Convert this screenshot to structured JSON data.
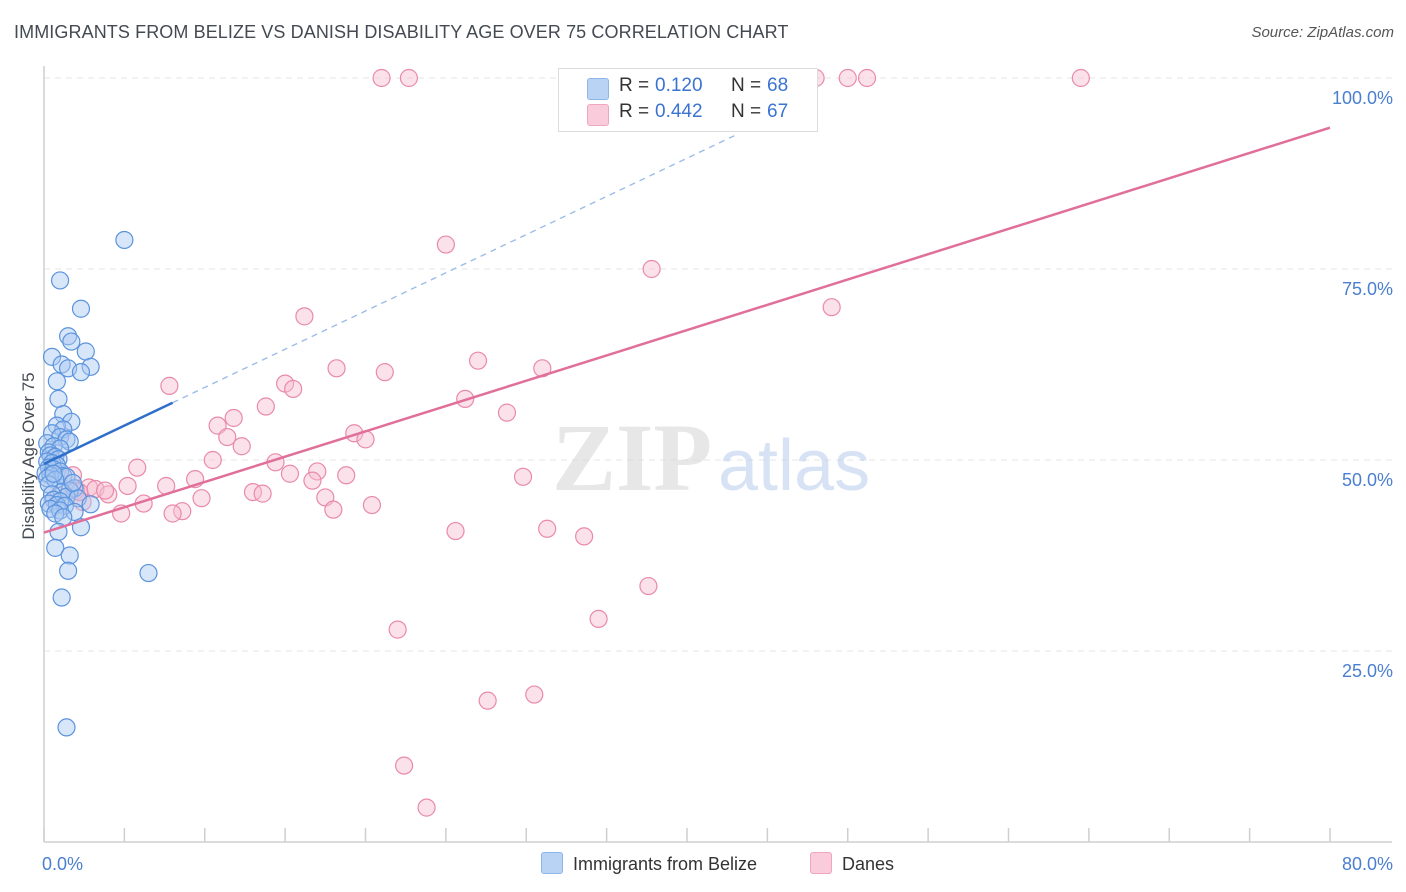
{
  "title": "IMMIGRANTS FROM BELIZE VS DANISH DISABILITY AGE OVER 75 CORRELATION CHART",
  "source": "Source: ZipAtlas.com",
  "watermark": {
    "zip": "ZIP",
    "atlas": "atlas"
  },
  "legend": {
    "rows": [
      {
        "r_label": "R = ",
        "r_value": "0.120",
        "n_label": "N = ",
        "n_value": "68"
      },
      {
        "r_label": "R = ",
        "r_value": "0.442",
        "n_label": "N = ",
        "n_value": "67"
      }
    ]
  },
  "bottom_legend": {
    "series1": "Immigrants from Belize",
    "series2": "Danes"
  },
  "colors": {
    "blue_fill": "#a9c8f2",
    "blue_stroke": "#5b93dd",
    "blue_line": "#2f6fc9",
    "pink_fill": "#f6bdd0",
    "pink_stroke": "#e98aaa",
    "pink_line": "#e0709a",
    "grid": "#e4e4e4",
    "tick": "#4a7fcf"
  },
  "chart_data": {
    "type": "scatter",
    "title": "IMMIGRANTS FROM BELIZE VS DANISH DISABILITY AGE OVER 75 CORRELATION CHART",
    "xlabel": "",
    "ylabel": "Disability Age Over 75",
    "xlim": [
      0,
      80
    ],
    "ylim": [
      0,
      100
    ],
    "x_tick_labels": [
      "0.0%",
      "80.0%"
    ],
    "y_ticks": [
      25,
      50,
      75,
      100
    ],
    "y_tick_labels": [
      "25.0%",
      "50.0%",
      "75.0%",
      "100.0%"
    ],
    "grid": true,
    "series": [
      {
        "name": "Immigrants from Belize",
        "r": 0.12,
        "n": 68,
        "trend": {
          "x0": 0.0,
          "y0": 49.5,
          "x1": 8.0,
          "y1": 57.5
        },
        "trend_ext": {
          "x0": 8.0,
          "y0": 57.5,
          "x1": 43.0,
          "y1": 92.5
        },
        "points": [
          [
            5.0,
            78.8
          ],
          [
            1.0,
            73.5
          ],
          [
            2.3,
            69.8
          ],
          [
            1.5,
            66.2
          ],
          [
            1.7,
            65.5
          ],
          [
            2.6,
            64.2
          ],
          [
            0.5,
            63.5
          ],
          [
            1.1,
            62.5
          ],
          [
            1.5,
            62.0
          ],
          [
            2.9,
            62.2
          ],
          [
            2.3,
            61.5
          ],
          [
            0.8,
            60.3
          ],
          [
            0.9,
            58.0
          ],
          [
            1.2,
            56.0
          ],
          [
            1.7,
            55.0
          ],
          [
            0.8,
            54.5
          ],
          [
            1.2,
            54.0
          ],
          [
            0.5,
            53.5
          ],
          [
            1.0,
            53.0
          ],
          [
            1.4,
            52.7
          ],
          [
            1.6,
            52.4
          ],
          [
            0.2,
            52.2
          ],
          [
            0.6,
            51.8
          ],
          [
            1.0,
            51.5
          ],
          [
            0.3,
            51.0
          ],
          [
            0.4,
            50.6
          ],
          [
            0.7,
            50.4
          ],
          [
            0.9,
            50.1
          ],
          [
            0.2,
            49.8
          ],
          [
            0.5,
            49.6
          ],
          [
            0.8,
            49.3
          ],
          [
            0.3,
            49.0
          ],
          [
            0.6,
            48.8
          ],
          [
            1.0,
            48.5
          ],
          [
            0.1,
            48.3
          ],
          [
            0.4,
            48.0
          ],
          [
            1.2,
            47.9
          ],
          [
            1.4,
            47.8
          ],
          [
            0.2,
            47.6
          ],
          [
            0.7,
            47.4
          ],
          [
            0.3,
            46.8
          ],
          [
            1.9,
            46.3
          ],
          [
            1.6,
            46.0
          ],
          [
            1.1,
            45.8
          ],
          [
            0.5,
            45.5
          ],
          [
            1.4,
            45.2
          ],
          [
            2.1,
            45.0
          ],
          [
            0.6,
            44.8
          ],
          [
            1.0,
            44.6
          ],
          [
            0.3,
            44.3
          ],
          [
            0.8,
            44.1
          ],
          [
            1.3,
            44.0
          ],
          [
            2.9,
            44.2
          ],
          [
            0.4,
            43.6
          ],
          [
            1.0,
            43.4
          ],
          [
            1.9,
            43.2
          ],
          [
            0.7,
            43.0
          ],
          [
            1.2,
            42.5
          ],
          [
            2.3,
            41.2
          ],
          [
            0.9,
            40.6
          ],
          [
            0.7,
            38.5
          ],
          [
            1.6,
            37.5
          ],
          [
            1.5,
            35.5
          ],
          [
            6.5,
            35.2
          ],
          [
            1.1,
            32.0
          ],
          [
            1.4,
            15.0
          ],
          [
            0.6,
            48.2
          ],
          [
            1.8,
            47.0
          ]
        ]
      },
      {
        "name": "Danes",
        "r": 0.442,
        "n": 67,
        "trend": {
          "x0": 0.0,
          "y0": 40.5,
          "x1": 80.0,
          "y1": 93.5
        },
        "points": [
          [
            21.0,
            100.0
          ],
          [
            22.7,
            100.0
          ],
          [
            47.5,
            100.0
          ],
          [
            48.0,
            100.0
          ],
          [
            50.0,
            100.0
          ],
          [
            51.2,
            100.0
          ],
          [
            64.5,
            100.0
          ],
          [
            25.0,
            78.2
          ],
          [
            37.8,
            75.0
          ],
          [
            49.0,
            70.0
          ],
          [
            16.2,
            68.8
          ],
          [
            27.0,
            63.0
          ],
          [
            18.2,
            62.0
          ],
          [
            31.0,
            62.0
          ],
          [
            21.2,
            61.5
          ],
          [
            15.0,
            60.0
          ],
          [
            7.8,
            59.7
          ],
          [
            15.5,
            59.3
          ],
          [
            26.2,
            58.0
          ],
          [
            13.8,
            57.0
          ],
          [
            28.8,
            56.2
          ],
          [
            11.8,
            55.5
          ],
          [
            10.8,
            54.5
          ],
          [
            19.3,
            53.5
          ],
          [
            11.4,
            53.0
          ],
          [
            20.0,
            52.7
          ],
          [
            12.3,
            51.8
          ],
          [
            10.5,
            50.0
          ],
          [
            14.4,
            49.7
          ],
          [
            5.8,
            49.0
          ],
          [
            15.3,
            48.2
          ],
          [
            17.0,
            48.5
          ],
          [
            18.8,
            48.0
          ],
          [
            29.8,
            47.8
          ],
          [
            9.4,
            47.5
          ],
          [
            7.6,
            46.6
          ],
          [
            5.2,
            46.6
          ],
          [
            2.8,
            46.4
          ],
          [
            3.2,
            46.2
          ],
          [
            2.0,
            46.0
          ],
          [
            13.0,
            45.8
          ],
          [
            13.6,
            45.6
          ],
          [
            4.0,
            45.5
          ],
          [
            0.9,
            45.3
          ],
          [
            17.5,
            45.1
          ],
          [
            9.8,
            45.0
          ],
          [
            2.4,
            44.5
          ],
          [
            6.2,
            44.3
          ],
          [
            20.4,
            44.1
          ],
          [
            18.0,
            43.5
          ],
          [
            8.6,
            43.3
          ],
          [
            8.0,
            43.0
          ],
          [
            4.8,
            43.0
          ],
          [
            25.6,
            40.7
          ],
          [
            31.3,
            41.0
          ],
          [
            33.6,
            40.0
          ],
          [
            37.6,
            33.5
          ],
          [
            34.5,
            29.2
          ],
          [
            22.0,
            27.8
          ],
          [
            30.5,
            19.3
          ],
          [
            27.6,
            18.5
          ],
          [
            22.4,
            10.0
          ],
          [
            23.8,
            4.5
          ],
          [
            1.8,
            48.0
          ],
          [
            2.2,
            45.8
          ],
          [
            3.8,
            46.0
          ],
          [
            16.7,
            47.3
          ]
        ]
      }
    ]
  }
}
